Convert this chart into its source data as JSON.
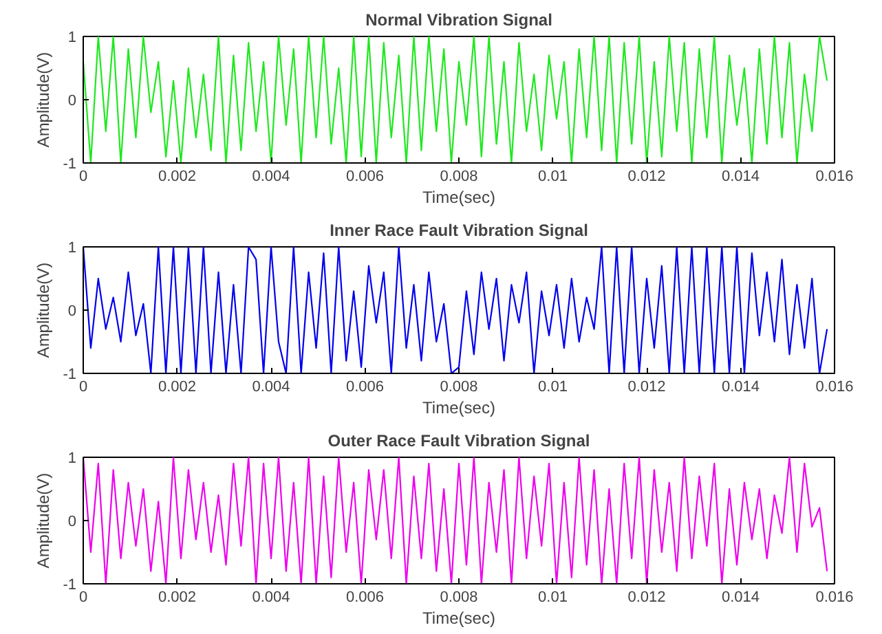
{
  "chart_data": [
    {
      "type": "line",
      "title": "Normal Vibration Signal",
      "xlabel": "Time(sec)",
      "ylabel": "Amplitude(V)",
      "xlim": [
        0,
        0.016
      ],
      "ylim": [
        -1,
        1
      ],
      "xticks": [
        0,
        0.002,
        0.004,
        0.006,
        0.008,
        0.01,
        0.012,
        0.014,
        0.016
      ],
      "yticks": [
        -1,
        0,
        1
      ],
      "grid": false,
      "x": [
        0,
        0.00016,
        0.00032,
        0.00048,
        0.00064,
        0.0008,
        0.00096,
        0.00112,
        0.00128,
        0.00144,
        0.0016,
        0.00176,
        0.00192,
        0.00208,
        0.00224,
        0.0024,
        0.00256,
        0.00272,
        0.00288,
        0.00304,
        0.0032,
        0.00336,
        0.00352,
        0.00368,
        0.00384,
        0.004,
        0.00416,
        0.00432,
        0.00448,
        0.00464,
        0.0048,
        0.00496,
        0.00512,
        0.00528,
        0.00544,
        0.0056,
        0.00576,
        0.00592,
        0.00608,
        0.00624,
        0.0064,
        0.00656,
        0.00672,
        0.00688,
        0.00704,
        0.0072,
        0.00736,
        0.00752,
        0.00768,
        0.00784,
        0.008,
        0.00816,
        0.00832,
        0.00848,
        0.00864,
        0.0088,
        0.00896,
        0.00912,
        0.00928,
        0.00944,
        0.0096,
        0.00976,
        0.00992,
        0.01008,
        0.01024,
        0.0104,
        0.01056,
        0.01072,
        0.01088,
        0.01104,
        0.0112,
        0.01136,
        0.01152,
        0.01168,
        0.01184,
        0.012,
        0.01216,
        0.01232,
        0.01248,
        0.01264,
        0.0128,
        0.01296,
        0.01312,
        0.01328,
        0.01344,
        0.0136,
        0.01376,
        0.01392,
        0.01408,
        0.01424,
        0.0144,
        0.01456,
        0.01472,
        0.01488,
        0.01504,
        0.0152,
        0.01536,
        0.01552,
        0.01568,
        0.01584
      ],
      "series": [
        {
          "color": "#1ee81e",
          "values": [
            0.6,
            -1,
            1,
            -0.5,
            1,
            -1,
            0.8,
            -0.6,
            1,
            -0.2,
            0.6,
            -0.9,
            0.3,
            -1,
            0.5,
            -0.6,
            0.4,
            -0.8,
            1,
            -1,
            0.7,
            -0.8,
            0.9,
            -0.5,
            0.6,
            -1,
            1,
            -0.4,
            0.8,
            -1,
            1,
            -0.6,
            1,
            -0.7,
            0.5,
            -1,
            1,
            -0.9,
            1,
            -1,
            0.9,
            -0.6,
            0.7,
            -1,
            1,
            -0.8,
            1,
            -0.5,
            0.8,
            -1,
            0.6,
            -0.4,
            1,
            -0.9,
            1,
            -0.7,
            0.6,
            -1,
            0.9,
            -0.5,
            0.4,
            -0.8,
            0.7,
            -0.3,
            0.6,
            -1,
            0.8,
            -0.6,
            1,
            -0.8,
            1,
            -1,
            0.9,
            -0.7,
            1,
            -1,
            0.6,
            -0.9,
            1,
            -0.5,
            0.9,
            -1,
            0.8,
            -0.6,
            1,
            -1,
            0.7,
            -0.4,
            0.5,
            -1,
            0.8,
            -0.7,
            1,
            -0.6,
            0.9,
            -1,
            0.4,
            -0.5,
            1,
            0.3
          ]
        }
      ]
    },
    {
      "type": "line",
      "title": "Inner Race Fault Vibration Signal",
      "xlabel": "Time(sec)",
      "ylabel": "Amplitude(V)",
      "xlim": [
        0,
        0.016
      ],
      "ylim": [
        -1,
        1
      ],
      "xticks": [
        0,
        0.002,
        0.004,
        0.006,
        0.008,
        0.01,
        0.012,
        0.014,
        0.016
      ],
      "yticks": [
        -1,
        0,
        1
      ],
      "grid": false,
      "x": [
        0,
        0.00016,
        0.00032,
        0.00048,
        0.00064,
        0.0008,
        0.00096,
        0.00112,
        0.00128,
        0.00144,
        0.0016,
        0.00176,
        0.00192,
        0.00208,
        0.00224,
        0.0024,
        0.00256,
        0.00272,
        0.00288,
        0.00304,
        0.0032,
        0.00336,
        0.00352,
        0.00368,
        0.00384,
        0.004,
        0.00416,
        0.00432,
        0.00448,
        0.00464,
        0.0048,
        0.00496,
        0.00512,
        0.00528,
        0.00544,
        0.0056,
        0.00576,
        0.00592,
        0.00608,
        0.00624,
        0.0064,
        0.00656,
        0.00672,
        0.00688,
        0.00704,
        0.0072,
        0.00736,
        0.00752,
        0.00768,
        0.00784,
        0.008,
        0.00816,
        0.00832,
        0.00848,
        0.00864,
        0.0088,
        0.00896,
        0.00912,
        0.00928,
        0.00944,
        0.0096,
        0.00976,
        0.00992,
        0.01008,
        0.01024,
        0.0104,
        0.01056,
        0.01072,
        0.01088,
        0.01104,
        0.0112,
        0.01136,
        0.01152,
        0.01168,
        0.01184,
        0.012,
        0.01216,
        0.01232,
        0.01248,
        0.01264,
        0.0128,
        0.01296,
        0.01312,
        0.01328,
        0.01344,
        0.0136,
        0.01376,
        0.01392,
        0.01408,
        0.01424,
        0.0144,
        0.01456,
        0.01472,
        0.01488,
        0.01504,
        0.0152,
        0.01536,
        0.01552,
        0.01568,
        0.01584
      ],
      "series": [
        {
          "color": "#0000ee",
          "values": [
            1,
            -0.6,
            0.5,
            -0.3,
            0.2,
            -0.5,
            0.6,
            -0.4,
            0.1,
            -1,
            1,
            -1,
            1,
            -1,
            1,
            -1,
            1,
            -1,
            0.6,
            -1,
            0.4,
            -1,
            1,
            0.8,
            -1,
            1,
            -0.5,
            -1,
            1,
            -1,
            0.6,
            -0.6,
            0.9,
            -1,
            1,
            -0.8,
            0.3,
            -0.9,
            0.7,
            -0.2,
            0.6,
            -1,
            1,
            -0.6,
            0.4,
            -0.8,
            0.6,
            -0.5,
            0.1,
            -1,
            -0.9,
            0.3,
            -0.7,
            0.6,
            -0.3,
            0.5,
            -0.8,
            0.4,
            -0.2,
            0.6,
            -1,
            0.3,
            -0.4,
            0.4,
            -0.6,
            0.5,
            -0.5,
            0.2,
            -0.3,
            1,
            -1,
            1,
            -1,
            1,
            -1,
            0.5,
            -0.6,
            0.7,
            -1,
            1,
            -1,
            1,
            -1,
            1,
            -1,
            1,
            -1,
            1,
            -1,
            0.9,
            -0.4,
            0.6,
            -0.5,
            0.8,
            -0.7,
            0.4,
            -0.6,
            0.5,
            -1,
            -0.3
          ]
        }
      ]
    },
    {
      "type": "line",
      "title": "Outer Race Fault Vibration Signal",
      "xlabel": "Time(sec)",
      "ylabel": "Amplitude(V)",
      "xlim": [
        0,
        0.016
      ],
      "ylim": [
        -1,
        1
      ],
      "xticks": [
        0,
        0.002,
        0.004,
        0.006,
        0.008,
        0.01,
        0.012,
        0.014,
        0.016
      ],
      "yticks": [
        -1,
        0,
        1
      ],
      "grid": false,
      "x": [
        0,
        0.00016,
        0.00032,
        0.00048,
        0.00064,
        0.0008,
        0.00096,
        0.00112,
        0.00128,
        0.00144,
        0.0016,
        0.00176,
        0.00192,
        0.00208,
        0.00224,
        0.0024,
        0.00256,
        0.00272,
        0.00288,
        0.00304,
        0.0032,
        0.00336,
        0.00352,
        0.00368,
        0.00384,
        0.004,
        0.00416,
        0.00432,
        0.00448,
        0.00464,
        0.0048,
        0.00496,
        0.00512,
        0.00528,
        0.00544,
        0.0056,
        0.00576,
        0.00592,
        0.00608,
        0.00624,
        0.0064,
        0.00656,
        0.00672,
        0.00688,
        0.00704,
        0.0072,
        0.00736,
        0.00752,
        0.00768,
        0.00784,
        0.008,
        0.00816,
        0.00832,
        0.00848,
        0.00864,
        0.0088,
        0.00896,
        0.00912,
        0.00928,
        0.00944,
        0.0096,
        0.00976,
        0.00992,
        0.01008,
        0.01024,
        0.0104,
        0.01056,
        0.01072,
        0.01088,
        0.01104,
        0.0112,
        0.01136,
        0.01152,
        0.01168,
        0.01184,
        0.012,
        0.01216,
        0.01232,
        0.01248,
        0.01264,
        0.0128,
        0.01296,
        0.01312,
        0.01328,
        0.01344,
        0.0136,
        0.01376,
        0.01392,
        0.01408,
        0.01424,
        0.0144,
        0.01456,
        0.01472,
        0.01488,
        0.01504,
        0.0152,
        0.01536,
        0.01552,
        0.01568,
        0.01584
      ],
      "series": [
        {
          "color": "#ee00ee",
          "values": [
            1,
            -0.5,
            0.9,
            -1,
            0.8,
            -0.6,
            0.6,
            -0.4,
            0.5,
            -0.8,
            0.3,
            -1,
            1,
            -0.6,
            0.8,
            -0.3,
            0.6,
            -0.5,
            0.4,
            -0.7,
            0.9,
            -0.4,
            1,
            -1,
            0.9,
            -0.6,
            1,
            -0.8,
            0.6,
            -1,
            1,
            -1,
            0.7,
            -0.9,
            1,
            -0.5,
            0.6,
            -1,
            0.8,
            -0.3,
            0.8,
            -0.6,
            1,
            -1,
            0.7,
            -0.6,
            0.9,
            -0.8,
            0.5,
            -1,
            0.9,
            -0.7,
            1,
            -1,
            0.6,
            -0.5,
            0.8,
            -1,
            1,
            -0.6,
            0.7,
            -0.4,
            0.9,
            -1,
            0.6,
            -0.9,
            1,
            -0.7,
            0.8,
            -1,
            0.5,
            -1,
            0.9,
            -0.6,
            1,
            -1,
            0.8,
            -0.5,
            0.6,
            -0.8,
            1,
            -0.6,
            0.7,
            -0.4,
            0.9,
            -1,
            0.5,
            -0.7,
            0.6,
            -0.3,
            0.5,
            -0.6,
            0.4,
            -0.2,
            1,
            -0.5,
            0.9,
            -0.1,
            0.2,
            -0.8
          ]
        }
      ]
    }
  ]
}
